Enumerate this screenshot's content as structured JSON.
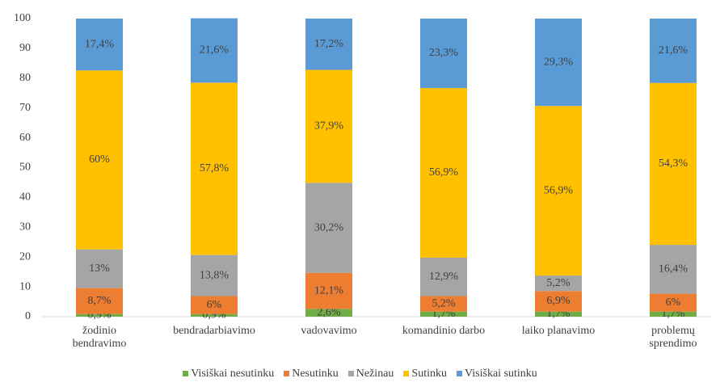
{
  "chart_data": {
    "type": "stacked_bar",
    "categories": [
      "žodinio bendravimo",
      "bendradarbiavimo",
      "vadovavimo",
      "komandinio darbo",
      "laiko planavimo",
      "problemų sprendimo"
    ],
    "series": [
      {
        "name": "Visiškai nesutinku",
        "color": "#70ad47",
        "values": [
          0.9,
          0.9,
          2.6,
          1.7,
          1.7,
          1.7
        ],
        "value_labels": [
          "0,9%",
          "0,9%",
          "2,6%",
          "1,7%",
          "1,7%",
          "1,7%"
        ]
      },
      {
        "name": "Nesutinku",
        "color": "#ed7d31",
        "values": [
          8.7,
          6,
          12.1,
          5.2,
          6.9,
          6
        ],
        "value_labels": [
          "8,7%",
          "6%",
          "12,1%",
          "5,2%",
          "6,9%",
          "6%"
        ]
      },
      {
        "name": "Nežinau",
        "color": "#a5a5a5",
        "values": [
          13,
          13.8,
          30.2,
          12.9,
          5.2,
          16.4
        ],
        "value_labels": [
          "13%",
          "13,8%",
          "30,2%",
          "12,9%",
          "5,2%",
          "16,4%"
        ]
      },
      {
        "name": "Sutinku",
        "color": "#ffc000",
        "values": [
          60,
          57.8,
          37.9,
          56.9,
          56.9,
          54.3
        ],
        "value_labels": [
          "60%",
          "57,8%",
          "37,9%",
          "56,9%",
          "56,9%",
          "54,3%"
        ]
      },
      {
        "name": "Visiškai sutinku",
        "color": "#5b9bd5",
        "values": [
          17.4,
          21.6,
          17.2,
          23.3,
          29.3,
          21.6
        ],
        "value_labels": [
          "17,4%",
          "21,6%",
          "17,2%",
          "23,3%",
          "29,3%",
          "21,6%"
        ]
      }
    ],
    "ylim": [
      0,
      100
    ],
    "yticks": [
      0,
      10,
      20,
      30,
      40,
      50,
      60,
      70,
      80,
      90,
      100
    ],
    "grid": false,
    "legend": "bottom"
  }
}
